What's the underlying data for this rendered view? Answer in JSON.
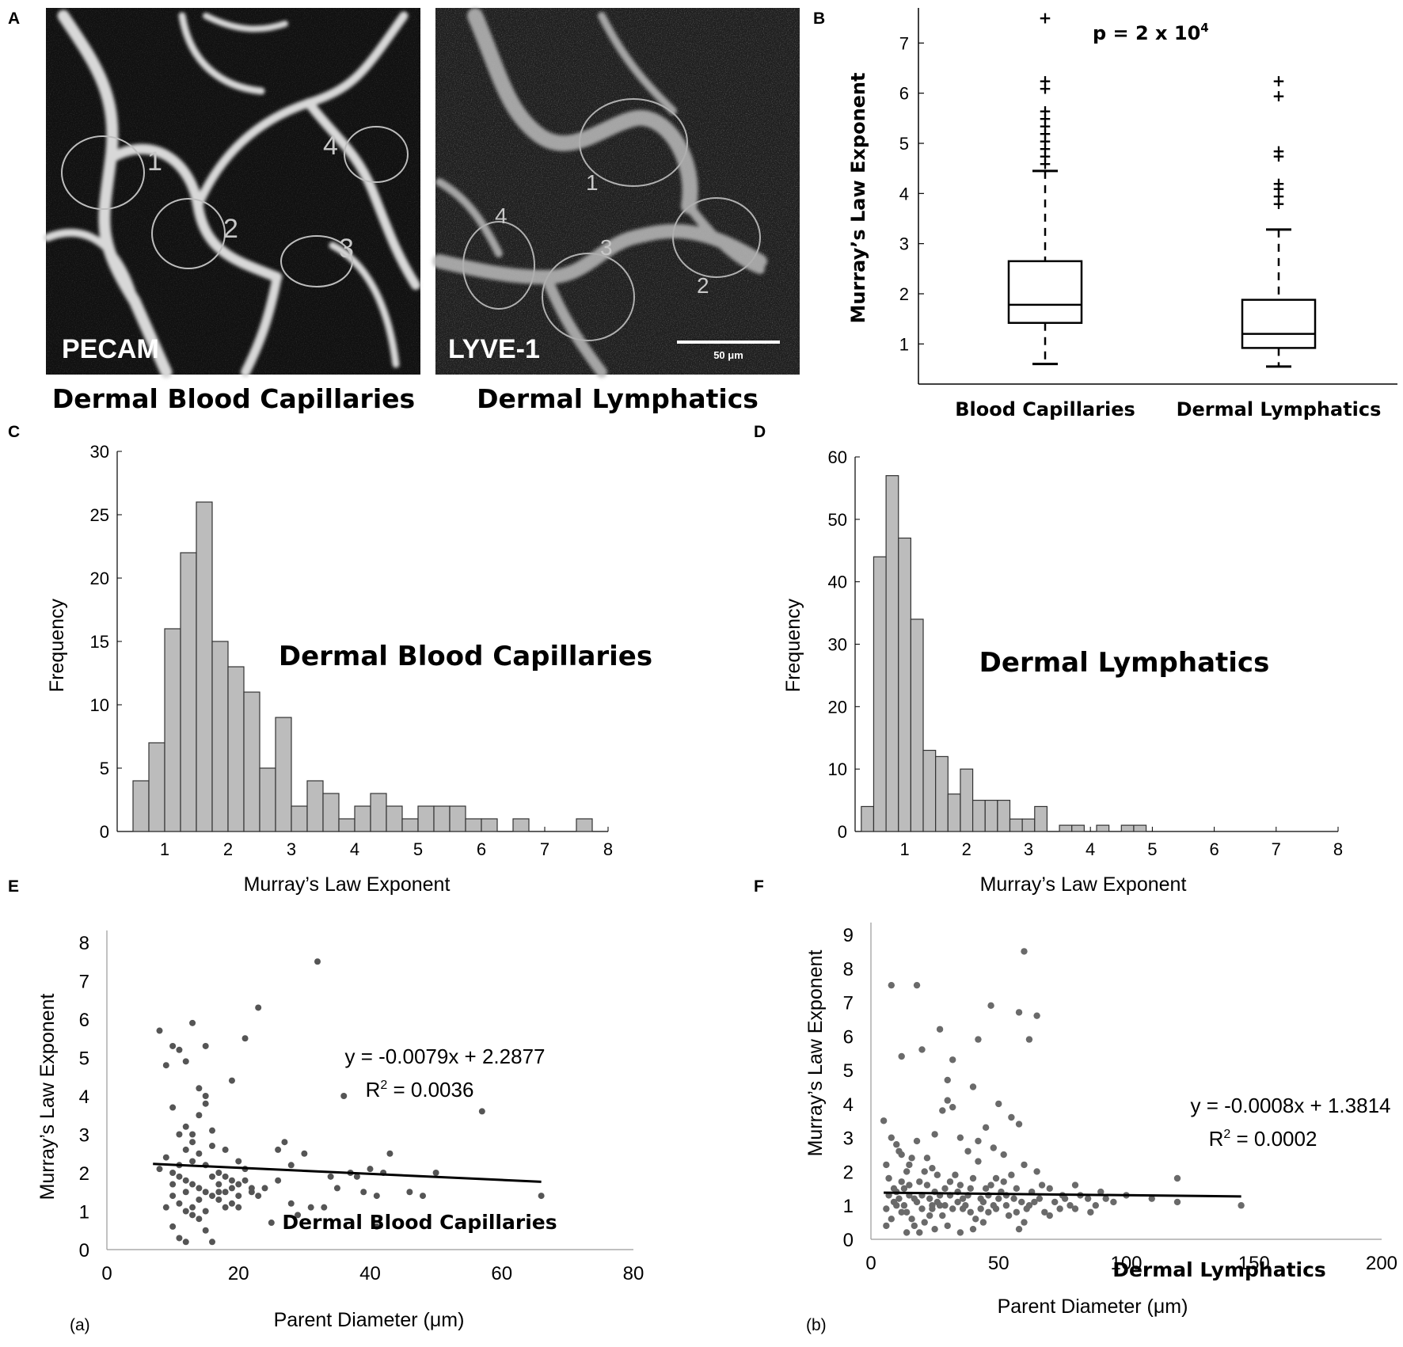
{
  "panels": {
    "a": "A",
    "b": "B",
    "c": "C",
    "d": "D",
    "e": "E",
    "f": "F",
    "sub_a": "(a)",
    "sub_b": "(b)"
  },
  "micrographs": {
    "left": {
      "stain": "PECAM",
      "caption": "Dermal Blood Capillaries",
      "markers": [
        "1",
        "2",
        "3",
        "4"
      ]
    },
    "right": {
      "stain": "LYVE-1",
      "caption": "Dermal Lymphatics",
      "markers": [
        "1",
        "2",
        "3",
        "4"
      ],
      "scale_bar": "50 μm"
    }
  },
  "chart_data": [
    {
      "id": "B",
      "type": "box",
      "ylabel": "Murray’s Law Exponent",
      "annotation": "p = 2 x 10",
      "annotation_sup": "4",
      "ylim": [
        0.2,
        7.7
      ],
      "yticks": [
        1,
        2,
        3,
        4,
        5,
        6,
        7
      ],
      "categories": [
        "Blood Capillaries",
        "Dermal Lymphatics"
      ],
      "boxes": [
        {
          "name": "Blood Capillaries",
          "whisker_low": 0.6,
          "q1": 1.42,
          "median": 1.78,
          "q3": 2.65,
          "whisker_high": 4.45,
          "outliers": [
            4.6,
            4.75,
            4.9,
            5.05,
            5.2,
            5.35,
            5.5,
            5.65,
            6.1,
            6.25,
            7.5
          ]
        },
        {
          "name": "Dermal Lymphatics",
          "whisker_low": 0.55,
          "q1": 0.92,
          "median": 1.2,
          "q3": 1.88,
          "whisker_high": 3.28,
          "outliers": [
            3.8,
            3.95,
            4.1,
            4.2,
            4.75,
            4.85,
            5.95,
            6.25
          ]
        }
      ]
    },
    {
      "id": "C",
      "type": "bar",
      "title": "Dermal Blood Capillaries",
      "xlabel": "Murray’s Law Exponent",
      "ylabel": "Frequency",
      "bin_width": 0.25,
      "bins_start": 0.5,
      "values": [
        4,
        7,
        16,
        22,
        26,
        15,
        13,
        11,
        5,
        9,
        2,
        4,
        3,
        1,
        2,
        3,
        2,
        1,
        2,
        2,
        2,
        1,
        1,
        0,
        1,
        0,
        0,
        0,
        1
      ],
      "xlim": [
        0.25,
        8
      ],
      "ylim": [
        0,
        30
      ],
      "xticks": [
        1,
        2,
        3,
        4,
        5,
        6,
        7,
        8
      ],
      "yticks": [
        0,
        5,
        10,
        15,
        20,
        25,
        30
      ]
    },
    {
      "id": "D",
      "type": "bar",
      "title": "Dermal Lymphatics",
      "xlabel": "Murray’s Law Exponent",
      "ylabel": "Frequency",
      "bin_width": 0.2,
      "bins_start": 0.3,
      "values": [
        4,
        44,
        57,
        47,
        34,
        13,
        12,
        6,
        10,
        5,
        5,
        5,
        2,
        2,
        4,
        0,
        1,
        1,
        0,
        1,
        0,
        1,
        1
      ],
      "xlim": [
        0.2,
        8
      ],
      "ylim": [
        0,
        60
      ],
      "xticks": [
        1,
        2,
        3,
        4,
        5,
        6,
        7,
        8
      ],
      "yticks": [
        0,
        10,
        20,
        30,
        40,
        50,
        60
      ]
    },
    {
      "id": "E",
      "type": "scatter",
      "title": "Dermal Blood Capillaries",
      "xlabel": "Parent Diameter (μm)",
      "ylabel": "Murray’s Law Exponent",
      "equation": "y = -0.0079x + 2.2877",
      "r2_label": "R",
      "r2_value": " = 0.0036",
      "trend": {
        "slope": -0.0079,
        "intercept": 2.2877,
        "x_from": 7,
        "x_to": 66
      },
      "xlim": [
        0,
        80
      ],
      "ylim": [
        0,
        8
      ],
      "xticks": [
        0,
        20,
        40,
        60,
        80
      ],
      "yticks": [
        0,
        1,
        2,
        3,
        4,
        5,
        6,
        7,
        8
      ],
      "points": [
        [
          8,
          5.7
        ],
        [
          9,
          4.8
        ],
        [
          10,
          5.3
        ],
        [
          11,
          5.2
        ],
        [
          12,
          4.9
        ],
        [
          13,
          5.9
        ],
        [
          15,
          5.3
        ],
        [
          14,
          4.2
        ],
        [
          15,
          4.0
        ],
        [
          21,
          5.5
        ],
        [
          19,
          4.4
        ],
        [
          23,
          6.3
        ],
        [
          32,
          7.5
        ],
        [
          36,
          4.0
        ],
        [
          57,
          3.6
        ],
        [
          43,
          2.5
        ],
        [
          40,
          2.1
        ],
        [
          42,
          2.0
        ],
        [
          50,
          2.0
        ],
        [
          66,
          1.4
        ],
        [
          10,
          3.7
        ],
        [
          11,
          3.0
        ],
        [
          12,
          3.2
        ],
        [
          13,
          2.8
        ],
        [
          14,
          3.5
        ],
        [
          16,
          3.1
        ],
        [
          18,
          2.6
        ],
        [
          20,
          2.3
        ],
        [
          9,
          2.4
        ],
        [
          8,
          2.1
        ],
        [
          10,
          2.0
        ],
        [
          11,
          1.9
        ],
        [
          12,
          1.8
        ],
        [
          13,
          1.7
        ],
        [
          14,
          1.6
        ],
        [
          15,
          1.5
        ],
        [
          16,
          1.4
        ],
        [
          17,
          1.3
        ],
        [
          18,
          1.5
        ],
        [
          19,
          1.6
        ],
        [
          20,
          1.7
        ],
        [
          21,
          1.8
        ],
        [
          22,
          1.6
        ],
        [
          11,
          1.2
        ],
        [
          12,
          1.0
        ],
        [
          13,
          0.9
        ],
        [
          14,
          0.8
        ],
        [
          10,
          0.6
        ],
        [
          11,
          0.3
        ],
        [
          12,
          0.2
        ],
        [
          15,
          0.5
        ],
        [
          16,
          0.2
        ],
        [
          9,
          1.1
        ],
        [
          10,
          1.4
        ],
        [
          13,
          2.3
        ],
        [
          14,
          2.5
        ],
        [
          15,
          2.2
        ],
        [
          16,
          2.7
        ],
        [
          17,
          2.0
        ],
        [
          18,
          1.9
        ],
        [
          19,
          1.8
        ],
        [
          20,
          1.4
        ],
        [
          22,
          1.5
        ],
        [
          24,
          1.6
        ],
        [
          26,
          2.6
        ],
        [
          27,
          2.8
        ],
        [
          28,
          1.2
        ],
        [
          30,
          2.5
        ],
        [
          31,
          1.1
        ],
        [
          33,
          1.1
        ],
        [
          35,
          1.6
        ],
        [
          37,
          2.0
        ],
        [
          38,
          1.9
        ],
        [
          39,
          1.5
        ],
        [
          41,
          1.4
        ],
        [
          46,
          1.5
        ],
        [
          48,
          1.4
        ],
        [
          25,
          0.7
        ],
        [
          29,
          0.9
        ],
        [
          41,
          0.6
        ],
        [
          12,
          2.6
        ],
        [
          13,
          3.0
        ],
        [
          15,
          3.8
        ],
        [
          14,
          1.3
        ],
        [
          17,
          1.7
        ],
        [
          19,
          1.2
        ],
        [
          12,
          1.5
        ],
        [
          10,
          1.7
        ],
        [
          11,
          2.2
        ],
        [
          16,
          1.9
        ],
        [
          17,
          1.5
        ],
        [
          18,
          1.1
        ],
        [
          21,
          2.1
        ],
        [
          23,
          1.4
        ],
        [
          26,
          1.8
        ],
        [
          28,
          2.2
        ],
        [
          34,
          1.9
        ],
        [
          13,
          1.1
        ],
        [
          15,
          1.0
        ],
        [
          20,
          1.1
        ]
      ]
    },
    {
      "id": "F",
      "type": "scatter",
      "title": "Dermal Lymphatics",
      "xlabel": "Parent Diameter (μm)",
      "ylabel": "Murray’s Law Exponent",
      "equation": "y = -0.0008x + 1.3814",
      "r2_label": "R",
      "r2_value": " = 0.0002",
      "trend": {
        "slope": -0.0008,
        "intercept": 1.3814,
        "x_from": 5,
        "x_to": 145
      },
      "xlim": [
        0,
        200
      ],
      "ylim": [
        0,
        9
      ],
      "xticks": [
        0,
        50,
        100,
        150,
        200
      ],
      "yticks": [
        0,
        1,
        2,
        3,
        4,
        5,
        6,
        7,
        8,
        9
      ],
      "points": [
        [
          8,
          7.5
        ],
        [
          18,
          7.5
        ],
        [
          60,
          8.5
        ],
        [
          47,
          6.9
        ],
        [
          58,
          6.7
        ],
        [
          65,
          6.6
        ],
        [
          62,
          5.9
        ],
        [
          27,
          6.2
        ],
        [
          32,
          5.3
        ],
        [
          20,
          5.6
        ],
        [
          12,
          5.4
        ],
        [
          42,
          5.9
        ],
        [
          30,
          4.7
        ],
        [
          40,
          4.5
        ],
        [
          50,
          4.0
        ],
        [
          55,
          3.6
        ],
        [
          120,
          1.8
        ],
        [
          145,
          1.0
        ],
        [
          5,
          3.5
        ],
        [
          8,
          3.0
        ],
        [
          10,
          2.8
        ],
        [
          12,
          2.5
        ],
        [
          15,
          2.2
        ],
        [
          18,
          2.9
        ],
        [
          22,
          2.4
        ],
        [
          25,
          3.1
        ],
        [
          28,
          3.8
        ],
        [
          30,
          4.1
        ],
        [
          32,
          3.9
        ],
        [
          35,
          3.0
        ],
        [
          38,
          2.6
        ],
        [
          42,
          2.9
        ],
        [
          45,
          3.3
        ],
        [
          48,
          2.7
        ],
        [
          52,
          2.5
        ],
        [
          58,
          3.4
        ],
        [
          60,
          2.2
        ],
        [
          65,
          2.0
        ],
        [
          70,
          1.5
        ],
        [
          75,
          1.3
        ],
        [
          80,
          1.6
        ],
        [
          85,
          1.2
        ],
        [
          90,
          1.4
        ],
        [
          95,
          1.1
        ],
        [
          100,
          1.3
        ],
        [
          110,
          1.2
        ],
        [
          120,
          1.1
        ],
        [
          7,
          1.8
        ],
        [
          9,
          1.5
        ],
        [
          11,
          1.2
        ],
        [
          13,
          1.0
        ],
        [
          14,
          0.8
        ],
        [
          16,
          0.6
        ],
        [
          17,
          0.4
        ],
        [
          19,
          0.2
        ],
        [
          21,
          0.5
        ],
        [
          23,
          0.7
        ],
        [
          24,
          0.9
        ],
        [
          26,
          1.1
        ],
        [
          27,
          1.3
        ],
        [
          29,
          1.5
        ],
        [
          31,
          1.7
        ],
        [
          33,
          1.9
        ],
        [
          34,
          1.4
        ],
        [
          36,
          1.2
        ],
        [
          37,
          1.0
        ],
        [
          39,
          0.8
        ],
        [
          41,
          0.6
        ],
        [
          43,
          0.9
        ],
        [
          44,
          1.1
        ],
        [
          46,
          1.3
        ],
        [
          47,
          1.6
        ],
        [
          49,
          1.8
        ],
        [
          51,
          1.4
        ],
        [
          53,
          1.0
        ],
        [
          54,
          0.7
        ],
        [
          56,
          1.2
        ],
        [
          57,
          1.5
        ],
        [
          6,
          0.9
        ],
        [
          8,
          0.6
        ],
        [
          10,
          1.4
        ],
        [
          12,
          1.7
        ],
        [
          14,
          2.0
        ],
        [
          15,
          1.3
        ],
        [
          18,
          1.1
        ],
        [
          20,
          0.9
        ],
        [
          22,
          1.6
        ],
        [
          24,
          2.1
        ],
        [
          26,
          1.9
        ],
        [
          28,
          0.7
        ],
        [
          30,
          0.4
        ],
        [
          32,
          0.9
        ],
        [
          35,
          1.6
        ],
        [
          38,
          1.3
        ],
        [
          40,
          1.8
        ],
        [
          42,
          2.3
        ],
        [
          44,
          0.5
        ],
        [
          46,
          0.8
        ],
        [
          48,
          1.0
        ],
        [
          50,
          1.2
        ],
        [
          52,
          1.7
        ],
        [
          55,
          1.9
        ],
        [
          59,
          1.1
        ],
        [
          61,
          0.9
        ],
        [
          63,
          1.4
        ],
        [
          66,
          1.2
        ],
        [
          68,
          0.8
        ],
        [
          72,
          1.1
        ],
        [
          74,
          0.9
        ],
        [
          78,
          1.0
        ],
        [
          82,
          1.3
        ],
        [
          86,
          0.8
        ],
        [
          88,
          1.0
        ],
        [
          92,
          1.2
        ],
        [
          11,
          2.6
        ],
        [
          16,
          2.4
        ],
        [
          19,
          1.7
        ],
        [
          21,
          2.0
        ],
        [
          25,
          1.4
        ],
        [
          27,
          1.0
        ],
        [
          9,
          1.1
        ],
        [
          13,
          1.5
        ],
        [
          17,
          1.2
        ],
        [
          23,
          1.2
        ],
        [
          29,
          1.0
        ],
        [
          31,
          1.3
        ],
        [
          36,
          0.9
        ],
        [
          45,
          1.5
        ],
        [
          53,
          1.3
        ],
        [
          62,
          1.0
        ],
        [
          67,
          1.6
        ],
        [
          76,
          1.2
        ],
        [
          6,
          2.2
        ],
        [
          7,
          1.3
        ],
        [
          10,
          1.0
        ],
        [
          12,
          0.8
        ],
        [
          15,
          1.6
        ],
        [
          20,
          1.3
        ],
        [
          24,
          1.0
        ],
        [
          34,
          1.1
        ],
        [
          39,
          1.5
        ],
        [
          43,
          1.2
        ],
        [
          49,
          0.9
        ],
        [
          57,
          0.8
        ],
        [
          64,
          1.1
        ],
        [
          70,
          0.7
        ],
        [
          80,
          0.9
        ],
        [
          58,
          0.3
        ],
        [
          60,
          0.5
        ],
        [
          40,
          0.3
        ],
        [
          35,
          0.2
        ],
        [
          25,
          0.3
        ],
        [
          14,
          0.2
        ],
        [
          6,
          0.4
        ]
      ]
    }
  ]
}
